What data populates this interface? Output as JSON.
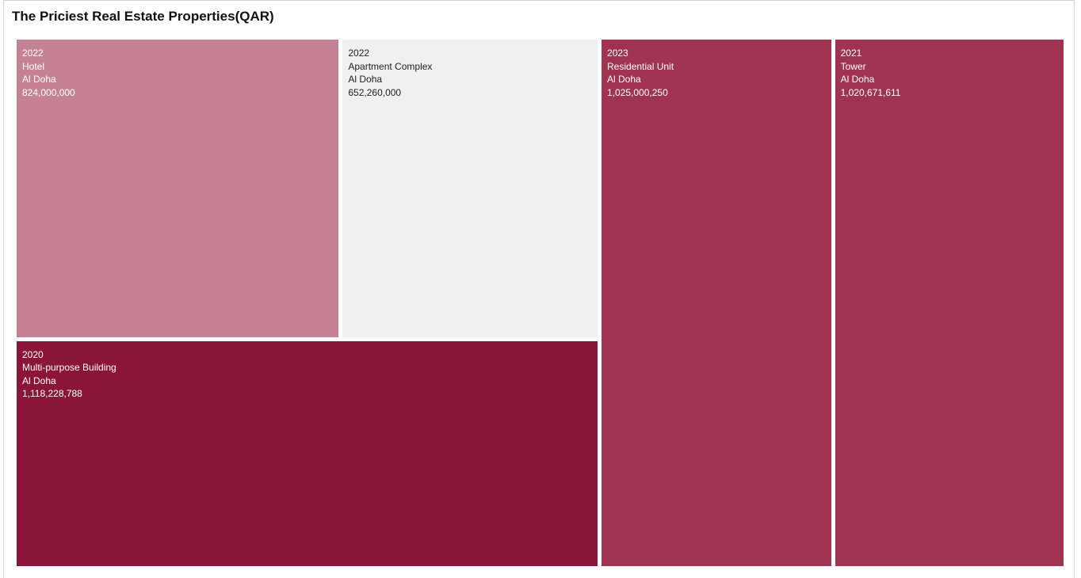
{
  "chart_data": {
    "type": "treemap",
    "title": "The Priciest Real Estate Properties(QAR)",
    "items": [
      {
        "year": "2022",
        "type": "Hotel",
        "location": "Al Doha",
        "value_label": "824,000,000",
        "value": 824000000,
        "color": "#c68295",
        "text_color": "#ffffff"
      },
      {
        "year": "2022",
        "type": "Apartment Complex",
        "location": "Al Doha",
        "value_label": "652,260,000",
        "value": 652260000,
        "color": "#f0f0f0",
        "text_color": "#222222"
      },
      {
        "year": "2020",
        "type": "Multi-purpose Building",
        "location": "Al Doha",
        "value_label": "1,118,228,788",
        "value": 1118228788,
        "color": "#8a1538",
        "text_color": "#ffffff"
      },
      {
        "year": "2023",
        "type": "Residential Unit",
        "location": "Al Doha",
        "value_label": "1,025,000,250",
        "value": 1025000250,
        "color": "#9f3351",
        "text_color": "#ffffff"
      },
      {
        "year": "2021",
        "type": "Tower",
        "location": "Al Doha",
        "value_label": "1,020,671,611",
        "value": 1020671611,
        "color": "#9f3351",
        "text_color": "#ffffff"
      }
    ]
  }
}
